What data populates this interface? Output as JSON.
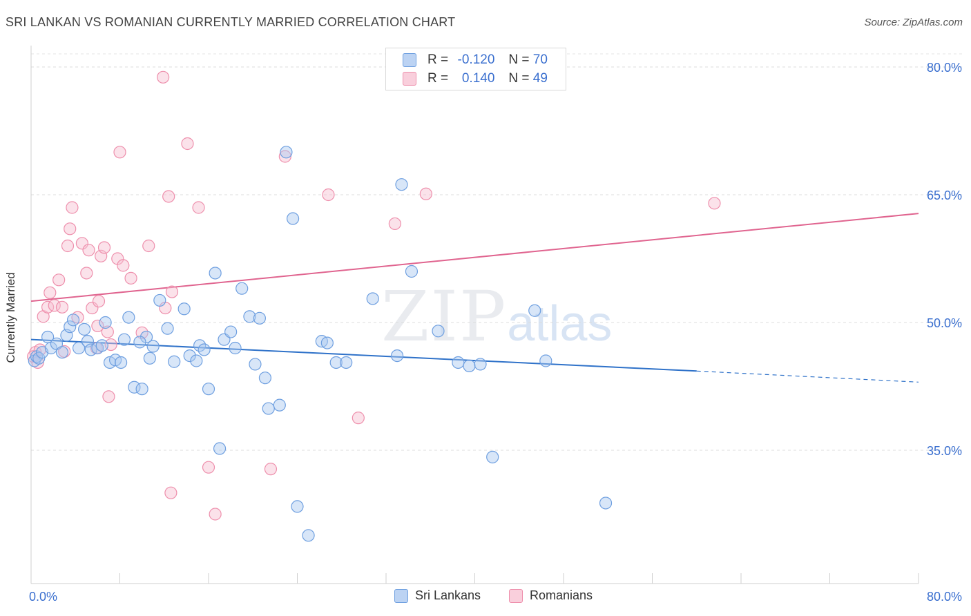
{
  "title": "SRI LANKAN VS ROMANIAN CURRENTLY MARRIED CORRELATION CHART",
  "source": "Source: ZipAtlas.com",
  "watermark": {
    "zip": "ZIP",
    "atlas": "atlas"
  },
  "colors": {
    "blue": "#6e9fe0",
    "blue_fill": "#a9c8f0",
    "pink": "#ee8fac",
    "pink_fill": "#f7bfd0",
    "blue_line": "#2f72c9",
    "pink_line": "#e0648f",
    "tick_text": "#3a6fcf"
  },
  "legend": {
    "rows": [
      {
        "r_label": "R =",
        "r_value": "-0.120",
        "n_label": "N =",
        "n_value": "70"
      },
      {
        "r_label": "R =",
        "r_value": "0.140",
        "n_label": "N =",
        "n_value": "49"
      }
    ]
  },
  "bottom_legend": {
    "sri_lankans": "Sri Lankans",
    "romanians": "Romanians"
  },
  "chart_data": {
    "type": "scatter",
    "title": "SRI LANKAN VS ROMANIAN CURRENTLY MARRIED CORRELATION CHART",
    "xlabel": "",
    "ylabel": "Currently Married",
    "xlim": [
      0,
      80
    ],
    "ylim": [
      20,
      83
    ],
    "x_tick_labels": [
      "0.0%",
      "80.0%"
    ],
    "y_ticks": [
      35,
      50,
      65,
      80
    ],
    "y_tick_labels": [
      "35.0%",
      "50.0%",
      "65.0%",
      "80.0%"
    ],
    "grid": true,
    "legend_position": "top-center",
    "series": [
      {
        "name": "Sri Lankans",
        "R": -0.12,
        "N": 70,
        "trend": {
          "x0": 0,
          "y0": 48.0,
          "x1": 60,
          "y1": 44.3,
          "dashed_to_x": 80,
          "dashed_y": 43.0
        },
        "points": [
          [
            0.3,
            45.5
          ],
          [
            0.5,
            46.0
          ],
          [
            0.7,
            45.8
          ],
          [
            1.0,
            46.5
          ],
          [
            1.5,
            48.3
          ],
          [
            1.8,
            47.0
          ],
          [
            2.3,
            47.5
          ],
          [
            2.8,
            46.5
          ],
          [
            3.2,
            48.5
          ],
          [
            3.5,
            49.5
          ],
          [
            3.8,
            50.3
          ],
          [
            4.3,
            47.0
          ],
          [
            4.8,
            49.2
          ],
          [
            5.1,
            47.8
          ],
          [
            5.4,
            46.8
          ],
          [
            6.0,
            47.0
          ],
          [
            6.4,
            47.3
          ],
          [
            6.7,
            50.0
          ],
          [
            7.1,
            45.3
          ],
          [
            7.6,
            45.6
          ],
          [
            8.1,
            45.3
          ],
          [
            8.4,
            48.0
          ],
          [
            8.8,
            50.6
          ],
          [
            9.3,
            42.4
          ],
          [
            10.0,
            42.2
          ],
          [
            10.4,
            48.3
          ],
          [
            10.7,
            45.8
          ],
          [
            9.8,
            47.7
          ],
          [
            11.0,
            47.2
          ],
          [
            11.6,
            52.6
          ],
          [
            12.3,
            49.3
          ],
          [
            12.9,
            45.4
          ],
          [
            13.8,
            51.6
          ],
          [
            14.3,
            46.1
          ],
          [
            14.9,
            45.5
          ],
          [
            15.2,
            47.3
          ],
          [
            15.6,
            46.8
          ],
          [
            16.0,
            42.2
          ],
          [
            16.6,
            55.8
          ],
          [
            17.0,
            35.2
          ],
          [
            17.4,
            48.0
          ],
          [
            18.0,
            48.9
          ],
          [
            18.4,
            47.0
          ],
          [
            19.0,
            54.0
          ],
          [
            19.7,
            50.7
          ],
          [
            20.2,
            45.1
          ],
          [
            20.6,
            50.5
          ],
          [
            21.1,
            43.5
          ],
          [
            21.4,
            39.9
          ],
          [
            22.4,
            40.3
          ],
          [
            23.0,
            70.0
          ],
          [
            23.6,
            62.2
          ],
          [
            24.0,
            28.4
          ],
          [
            25.0,
            25.0
          ],
          [
            26.2,
            47.8
          ],
          [
            26.7,
            47.6
          ],
          [
            27.5,
            45.3
          ],
          [
            28.4,
            45.3
          ],
          [
            30.8,
            52.8
          ],
          [
            33.0,
            46.1
          ],
          [
            33.4,
            66.2
          ],
          [
            34.3,
            56.0
          ],
          [
            36.7,
            49.0
          ],
          [
            38.5,
            45.3
          ],
          [
            39.5,
            44.9
          ],
          [
            40.5,
            45.1
          ],
          [
            41.6,
            34.2
          ],
          [
            45.4,
            51.4
          ],
          [
            46.4,
            45.5
          ],
          [
            51.8,
            28.8
          ]
        ]
      },
      {
        "name": "Romanians",
        "R": 0.14,
        "N": 49,
        "trend": {
          "x0": 0,
          "y0": 52.5,
          "x1": 80,
          "y1": 62.8
        },
        "points": [
          [
            0.4,
            46.5
          ],
          [
            0.8,
            46.8
          ],
          [
            1.1,
            50.7
          ],
          [
            1.5,
            51.8
          ],
          [
            1.7,
            53.5
          ],
          [
            2.1,
            52.0
          ],
          [
            2.5,
            55.0
          ],
          [
            2.8,
            51.8
          ],
          [
            3.0,
            46.6
          ],
          [
            3.3,
            59.0
          ],
          [
            3.5,
            61.0
          ],
          [
            3.7,
            63.5
          ],
          [
            4.2,
            50.6
          ],
          [
            4.6,
            59.3
          ],
          [
            5.0,
            55.8
          ],
          [
            5.2,
            58.5
          ],
          [
            5.5,
            51.7
          ],
          [
            5.9,
            47.0
          ],
          [
            6.0,
            49.6
          ],
          [
            6.1,
            52.5
          ],
          [
            6.3,
            57.8
          ],
          [
            6.6,
            58.8
          ],
          [
            6.9,
            48.9
          ],
          [
            7.2,
            47.4
          ],
          [
            7.0,
            41.3
          ],
          [
            7.8,
            57.5
          ],
          [
            8.0,
            70.0
          ],
          [
            8.3,
            56.7
          ],
          [
            9.0,
            55.2
          ],
          [
            10.0,
            48.8
          ],
          [
            10.6,
            59.0
          ],
          [
            11.9,
            78.8
          ],
          [
            12.1,
            51.7
          ],
          [
            12.4,
            64.8
          ],
          [
            12.7,
            53.6
          ],
          [
            12.6,
            30.0
          ],
          [
            14.1,
            71.0
          ],
          [
            15.1,
            63.5
          ],
          [
            16.0,
            33.0
          ],
          [
            16.6,
            27.5
          ],
          [
            21.6,
            32.8
          ],
          [
            22.9,
            69.5
          ],
          [
            26.8,
            65.0
          ],
          [
            29.5,
            38.8
          ],
          [
            32.8,
            61.6
          ],
          [
            35.6,
            65.1
          ],
          [
            61.6,
            64.0
          ],
          [
            0.2,
            46.0
          ],
          [
            0.6,
            45.3
          ]
        ]
      }
    ]
  }
}
